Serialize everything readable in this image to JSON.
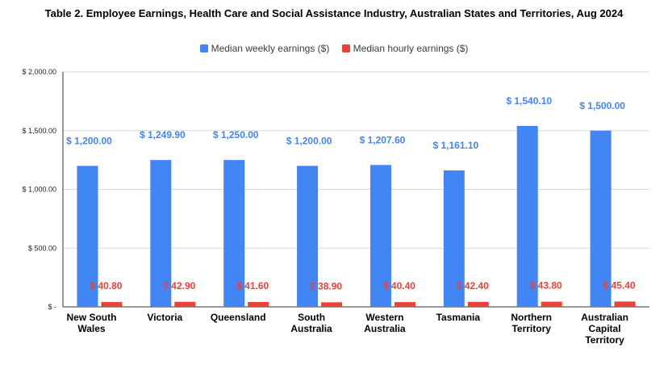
{
  "chart_data": {
    "type": "bar",
    "title": "Table 2. Employee Earnings, Health Care and Social Assistance Industry, Australian States and Territories, Aug 2024",
    "categories": [
      [
        "New South",
        "Wales"
      ],
      [
        "Victoria"
      ],
      [
        "Queensland"
      ],
      [
        "South",
        "Australia"
      ],
      [
        "Western",
        "Australia"
      ],
      [
        "Tasmania"
      ],
      [
        "Northern",
        "Territory"
      ],
      [
        "Australian",
        "Capital",
        "Territory"
      ]
    ],
    "series": [
      {
        "name": "Median weekly earnings ($)",
        "color": "#4285f4",
        "values": [
          1200.0,
          1249.9,
          1250.0,
          1200.0,
          1207.6,
          1161.1,
          1540.1,
          1500.0
        ],
        "labels": [
          "$ 1,200.00",
          "$ 1,249.90",
          "$ 1,250.00",
          "$ 1,200.00",
          "$ 1,207.60",
          "$ 1,161.10",
          "$ 1,540.10",
          "$ 1,500.00"
        ]
      },
      {
        "name": "Median hourly earnings ($)",
        "color": "#ea4335",
        "values": [
          40.8,
          42.9,
          41.6,
          38.9,
          40.4,
          42.4,
          43.8,
          45.4
        ],
        "labels": [
          "$ 40.80",
          "$ 42.90",
          "$ 41.60",
          "$ 38.90",
          "$ 40.40",
          "$ 42.40",
          "$ 43.80",
          "$ 45.40"
        ]
      }
    ],
    "ylim": [
      0,
      2000
    ],
    "y_ticks": [
      0,
      500,
      1000,
      1500,
      2000
    ],
    "y_tick_labels": [
      "$ -",
      "$ 500.00",
      "$ 1,000.00",
      "$ 1,500.00",
      "$ 2,000.00"
    ],
    "grid": true,
    "legend": "top-center"
  }
}
